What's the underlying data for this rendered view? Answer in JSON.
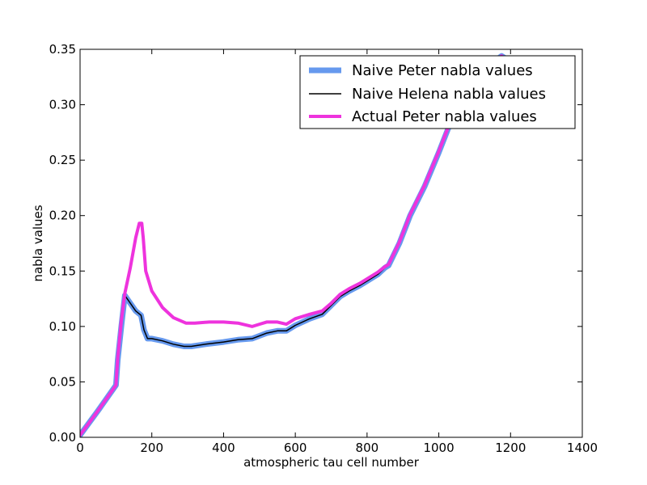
{
  "chart_data": {
    "type": "line",
    "title": "",
    "xlabel": "atmospheric tau cell number",
    "ylabel": "nabla values",
    "xlim": [
      0,
      1400
    ],
    "ylim": [
      0,
      0.35
    ],
    "xticks": [
      0,
      200,
      400,
      600,
      800,
      1000,
      1200,
      1400
    ],
    "xtick_labels": [
      "0",
      "200",
      "400",
      "600",
      "800",
      "1000",
      "1200",
      "1400"
    ],
    "yticks": [
      0.0,
      0.05,
      0.1,
      0.15,
      0.2,
      0.25,
      0.3,
      0.35
    ],
    "ytick_labels": [
      "0.00",
      "0.05",
      "0.10",
      "0.15",
      "0.20",
      "0.25",
      "0.30",
      "0.35"
    ],
    "grid": false,
    "legend_position": "top-right",
    "series": [
      {
        "name": "Naive Peter nabla values",
        "color": "#6699ee",
        "points": [
          [
            0,
            0.002
          ],
          [
            50,
            0.024
          ],
          [
            100,
            0.047
          ],
          [
            105,
            0.07
          ],
          [
            115,
            0.1
          ],
          [
            125,
            0.128
          ],
          [
            140,
            0.121
          ],
          [
            155,
            0.114
          ],
          [
            170,
            0.11
          ],
          [
            178,
            0.097
          ],
          [
            188,
            0.089
          ],
          [
            200,
            0.089
          ],
          [
            230,
            0.087
          ],
          [
            260,
            0.084
          ],
          [
            290,
            0.082
          ],
          [
            310,
            0.082
          ],
          [
            350,
            0.084
          ],
          [
            400,
            0.086
          ],
          [
            440,
            0.088
          ],
          [
            480,
            0.089
          ],
          [
            520,
            0.094
          ],
          [
            550,
            0.096
          ],
          [
            575,
            0.096
          ],
          [
            600,
            0.101
          ],
          [
            640,
            0.107
          ],
          [
            675,
            0.111
          ],
          [
            700,
            0.119
          ],
          [
            725,
            0.127
          ],
          [
            750,
            0.132
          ],
          [
            780,
            0.137
          ],
          [
            800,
            0.141
          ],
          [
            830,
            0.147
          ],
          [
            850,
            0.153
          ],
          [
            860,
            0.155
          ],
          [
            890,
            0.175
          ],
          [
            920,
            0.2
          ],
          [
            960,
            0.226
          ],
          [
            1000,
            0.257
          ],
          [
            1040,
            0.29
          ],
          [
            1080,
            0.308
          ],
          [
            1120,
            0.325
          ],
          [
            1150,
            0.338
          ],
          [
            1175,
            0.344
          ],
          [
            1185,
            0.342
          ]
        ]
      },
      {
        "name": "Naive Helena nabla values",
        "color": "#000000",
        "points": [
          [
            0,
            0.002
          ],
          [
            50,
            0.024
          ],
          [
            100,
            0.047
          ],
          [
            105,
            0.07
          ],
          [
            115,
            0.1
          ],
          [
            125,
            0.128
          ],
          [
            140,
            0.121
          ],
          [
            155,
            0.114
          ],
          [
            170,
            0.11
          ],
          [
            178,
            0.097
          ],
          [
            188,
            0.089
          ],
          [
            200,
            0.089
          ],
          [
            230,
            0.087
          ],
          [
            260,
            0.084
          ],
          [
            290,
            0.082
          ],
          [
            310,
            0.082
          ],
          [
            350,
            0.084
          ],
          [
            400,
            0.086
          ],
          [
            440,
            0.088
          ],
          [
            480,
            0.089
          ],
          [
            520,
            0.094
          ],
          [
            550,
            0.096
          ],
          [
            575,
            0.096
          ],
          [
            600,
            0.101
          ],
          [
            640,
            0.107
          ],
          [
            675,
            0.111
          ],
          [
            700,
            0.119
          ],
          [
            725,
            0.127
          ],
          [
            750,
            0.132
          ],
          [
            780,
            0.137
          ],
          [
            800,
            0.141
          ],
          [
            830,
            0.147
          ],
          [
            850,
            0.153
          ],
          [
            860,
            0.155
          ],
          [
            890,
            0.175
          ],
          [
            920,
            0.2
          ],
          [
            960,
            0.226
          ],
          [
            1000,
            0.257
          ],
          [
            1040,
            0.29
          ],
          [
            1080,
            0.308
          ],
          [
            1120,
            0.325
          ],
          [
            1150,
            0.338
          ],
          [
            1175,
            0.344
          ],
          [
            1185,
            0.342
          ]
        ]
      },
      {
        "name": "Actual Peter nabla values",
        "color": "#ee33dd",
        "points": [
          [
            0,
            0.002
          ],
          [
            50,
            0.024
          ],
          [
            100,
            0.047
          ],
          [
            105,
            0.072
          ],
          [
            115,
            0.105
          ],
          [
            125,
            0.13
          ],
          [
            140,
            0.153
          ],
          [
            155,
            0.18
          ],
          [
            165,
            0.193
          ],
          [
            172,
            0.193
          ],
          [
            176,
            0.18
          ],
          [
            183,
            0.15
          ],
          [
            200,
            0.132
          ],
          [
            230,
            0.117
          ],
          [
            260,
            0.108
          ],
          [
            295,
            0.103
          ],
          [
            320,
            0.103
          ],
          [
            360,
            0.104
          ],
          [
            400,
            0.104
          ],
          [
            440,
            0.103
          ],
          [
            480,
            0.1
          ],
          [
            500,
            0.102
          ],
          [
            520,
            0.104
          ],
          [
            550,
            0.104
          ],
          [
            575,
            0.102
          ],
          [
            600,
            0.107
          ],
          [
            640,
            0.111
          ],
          [
            675,
            0.114
          ],
          [
            700,
            0.121
          ],
          [
            725,
            0.129
          ],
          [
            750,
            0.134
          ],
          [
            780,
            0.139
          ],
          [
            800,
            0.143
          ],
          [
            830,
            0.149
          ],
          [
            850,
            0.154
          ],
          [
            860,
            0.156
          ],
          [
            890,
            0.176
          ],
          [
            920,
            0.201
          ],
          [
            960,
            0.227
          ],
          [
            1000,
            0.258
          ],
          [
            1040,
            0.291
          ],
          [
            1080,
            0.309
          ],
          [
            1120,
            0.326
          ],
          [
            1150,
            0.339
          ],
          [
            1175,
            0.344
          ],
          [
            1185,
            0.342
          ]
        ]
      }
    ]
  }
}
